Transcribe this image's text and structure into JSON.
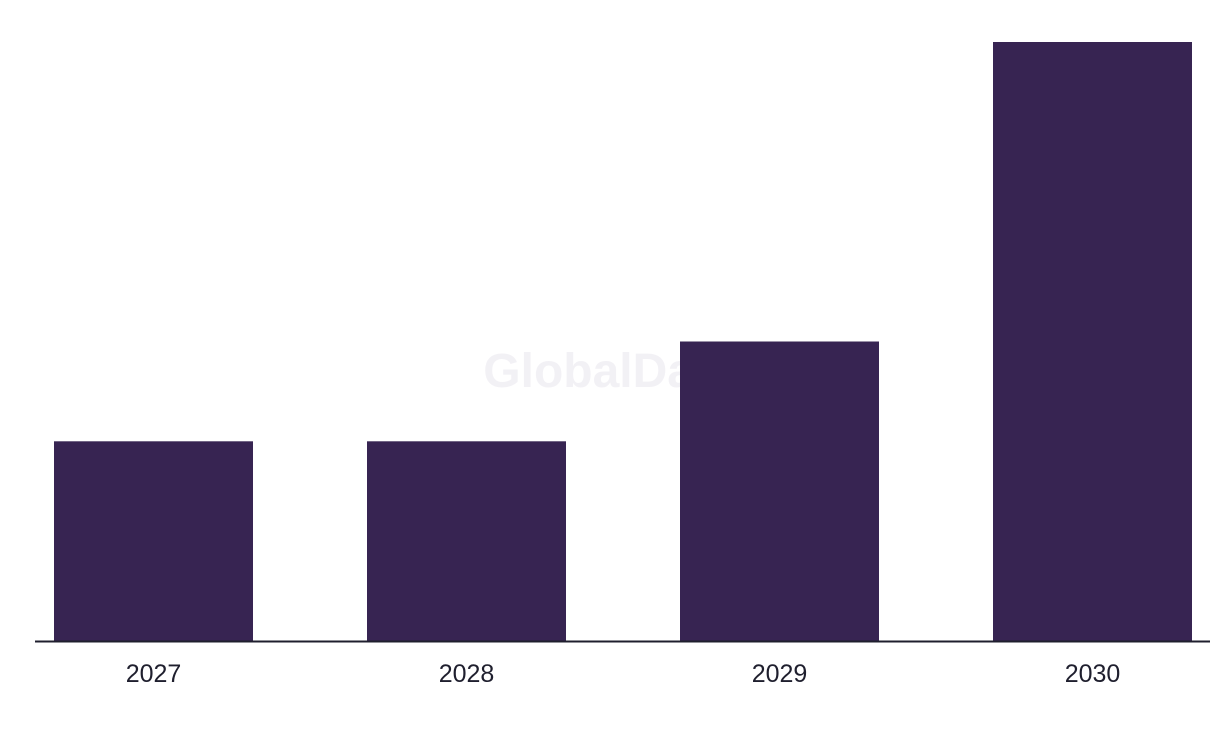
{
  "watermark": "GlobalData",
  "colors": {
    "bar": "#372452",
    "axis": "#1f1f2e",
    "background": "#ffffff"
  },
  "chart_data": {
    "type": "bar",
    "categories": [
      "2027",
      "2028",
      "2029",
      "2030"
    ],
    "values": [
      2,
      2,
      3,
      6
    ],
    "title": "",
    "xlabel": "",
    "ylabel": "",
    "ylim": [
      0,
      6
    ],
    "grid": false,
    "legend": "none"
  }
}
